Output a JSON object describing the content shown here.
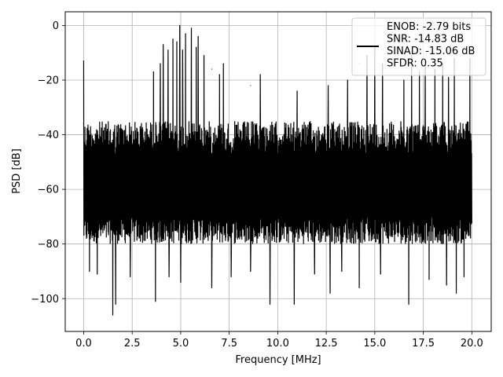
{
  "chart_data": {
    "type": "line",
    "xlabel": "Frequency [MHz]",
    "ylabel": "PSD [dB]",
    "xlim": [
      -0.95,
      21.0
    ],
    "ylim": [
      -112,
      5
    ],
    "xticks": [
      0.0,
      2.5,
      5.0,
      7.5,
      10.0,
      12.5,
      15.0,
      17.5,
      20.0
    ],
    "xtick_labels": [
      "0.0",
      "2.5",
      "5.0",
      "7.5",
      "10.0",
      "12.5",
      "15.0",
      "17.5",
      "20.0"
    ],
    "yticks": [
      0,
      -20,
      -40,
      -60,
      -80,
      -100
    ],
    "ytick_labels": [
      "0",
      "−20",
      "−40",
      "−60",
      "−80",
      "−100"
    ],
    "grid": true,
    "legend_position": "top-right",
    "series": [
      {
        "name": "ENOB: -2.79 bits\nSNR: -14.83 dB\nSINAD: -15.06 dB\nSFDR: 0.35",
        "color": "#000000",
        "description_points": {
          "x_range": [
            0.0,
            20.0
          ],
          "floor_band": [
            -80,
            -35
          ],
          "peaks": [
            {
              "x": 0.0,
              "y": -13
            },
            {
              "x": 4.95,
              "y": 0
            },
            {
              "x": 5.55,
              "y": -1
            },
            {
              "x": 5.25,
              "y": -3
            },
            {
              "x": 4.6,
              "y": -5
            },
            {
              "x": 5.9,
              "y": -4
            },
            {
              "x": 4.1,
              "y": -7
            },
            {
              "x": 4.35,
              "y": -9
            },
            {
              "x": 4.8,
              "y": -6
            },
            {
              "x": 5.1,
              "y": -9
            },
            {
              "x": 5.8,
              "y": -8
            },
            {
              "x": 6.2,
              "y": -11
            },
            {
              "x": 3.95,
              "y": -14
            },
            {
              "x": 3.6,
              "y": -17
            },
            {
              "x": 7.2,
              "y": -14
            },
            {
              "x": 7.0,
              "y": -18
            },
            {
              "x": 6.6,
              "y": -16
            },
            {
              "x": 8.6,
              "y": -22
            },
            {
              "x": 9.1,
              "y": -18
            },
            {
              "x": 15.0,
              "y": -8
            },
            {
              "x": 14.6,
              "y": -11
            },
            {
              "x": 14.2,
              "y": -14
            },
            {
              "x": 15.4,
              "y": -14
            },
            {
              "x": 16.9,
              "y": -11
            },
            {
              "x": 17.6,
              "y": -13
            },
            {
              "x": 17.3,
              "y": -17
            },
            {
              "x": 18.1,
              "y": -16
            },
            {
              "x": 18.5,
              "y": -14
            },
            {
              "x": 18.8,
              "y": -19
            },
            {
              "x": 19.6,
              "y": -8
            },
            {
              "x": 19.1,
              "y": -12
            },
            {
              "x": 19.9,
              "y": -12
            },
            {
              "x": 16.5,
              "y": -20
            },
            {
              "x": 13.6,
              "y": -20
            },
            {
              "x": 12.6,
              "y": -22
            },
            {
              "x": 11.0,
              "y": -24
            }
          ],
          "troughs": [
            {
              "x": 1.5,
              "y": -106
            },
            {
              "x": 1.65,
              "y": -102
            },
            {
              "x": 3.7,
              "y": -101
            },
            {
              "x": 9.6,
              "y": -102
            },
            {
              "x": 10.85,
              "y": -102
            },
            {
              "x": 16.75,
              "y": -102
            },
            {
              "x": 19.2,
              "y": -98
            },
            {
              "x": 12.7,
              "y": -98
            },
            {
              "x": 6.6,
              "y": -96
            },
            {
              "x": 5.0,
              "y": -94
            },
            {
              "x": 14.2,
              "y": -96
            },
            {
              "x": 0.3,
              "y": -90
            },
            {
              "x": 0.7,
              "y": -91
            },
            {
              "x": 2.4,
              "y": -92
            },
            {
              "x": 4.4,
              "y": -92
            },
            {
              "x": 7.6,
              "y": -92
            },
            {
              "x": 8.6,
              "y": -90
            },
            {
              "x": 11.9,
              "y": -91
            },
            {
              "x": 13.3,
              "y": -90
            },
            {
              "x": 15.3,
              "y": -91
            },
            {
              "x": 17.8,
              "y": -93
            },
            {
              "x": 18.7,
              "y": -95
            },
            {
              "x": 19.6,
              "y": -92
            }
          ]
        }
      }
    ]
  }
}
